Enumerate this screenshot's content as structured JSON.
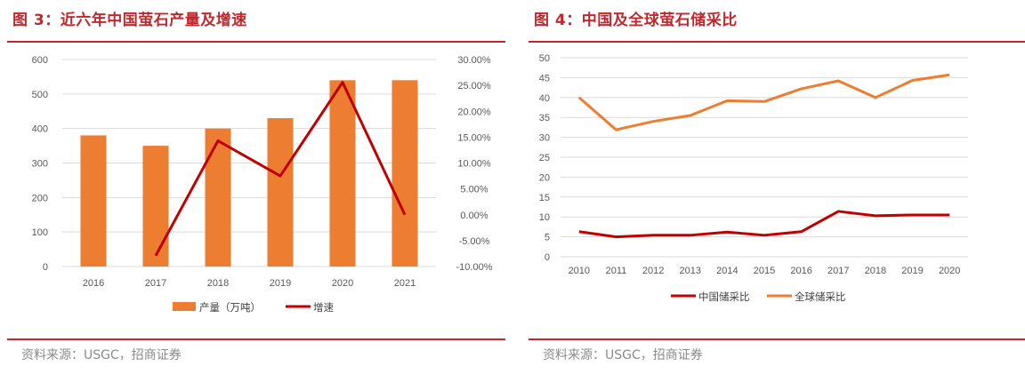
{
  "left_figure": {
    "title": "图 3：近六年中国萤石产量及增速",
    "source": "资料来源：USGC，招商证券"
  },
  "right_figure": {
    "title": "图 4：中国及全球萤石储采比",
    "source": "资料来源：USGC，招商证券"
  },
  "chart_data": [
    {
      "type": "bar",
      "title": "",
      "categories": [
        "2016",
        "2017",
        "2018",
        "2019",
        "2020",
        "2021"
      ],
      "series": [
        {
          "name": "产量（万吨）",
          "type": "bar",
          "axis": "left",
          "color": "#ed7d31",
          "values": [
            380,
            350,
            400,
            430,
            540,
            540
          ]
        },
        {
          "name": "增速",
          "type": "line",
          "axis": "right",
          "color": "#c00000",
          "values": [
            null,
            -7.9,
            14.3,
            7.5,
            25.6,
            0.0
          ]
        }
      ],
      "ylim": [
        0,
        600
      ],
      "y_ticks": [
        "0",
        "100",
        "200",
        "300",
        "400",
        "500",
        "600"
      ],
      "y2lim": [
        -10,
        30
      ],
      "y2_ticks": [
        "-10.00%",
        "-5.00%",
        "0.00%",
        "5.00%",
        "10.00%",
        "15.00%",
        "20.00%",
        "25.00%",
        "30.00%"
      ],
      "grid": true,
      "legend": "bottom"
    },
    {
      "type": "line",
      "title": "",
      "categories": [
        "2010",
        "2011",
        "2012",
        "2013",
        "2014",
        "2015",
        "2016",
        "2017",
        "2018",
        "2019",
        "2020"
      ],
      "series": [
        {
          "name": "中国储采比",
          "color": "#c00000",
          "values": [
            6.3,
            5.0,
            5.4,
            5.4,
            6.2,
            5.4,
            6.3,
            11.4,
            10.3,
            10.5,
            10.5
          ]
        },
        {
          "name": "全球储采比",
          "color": "#ed7d31",
          "values": [
            40.0,
            31.9,
            34.0,
            35.5,
            39.2,
            39.0,
            42.2,
            44.2,
            40.0,
            44.3,
            45.7
          ]
        }
      ],
      "ylim": [
        0,
        50
      ],
      "y_ticks": [
        "0",
        "5",
        "10",
        "15",
        "20",
        "25",
        "30",
        "35",
        "40",
        "45",
        "50"
      ],
      "grid": true,
      "legend": "bottom"
    }
  ]
}
